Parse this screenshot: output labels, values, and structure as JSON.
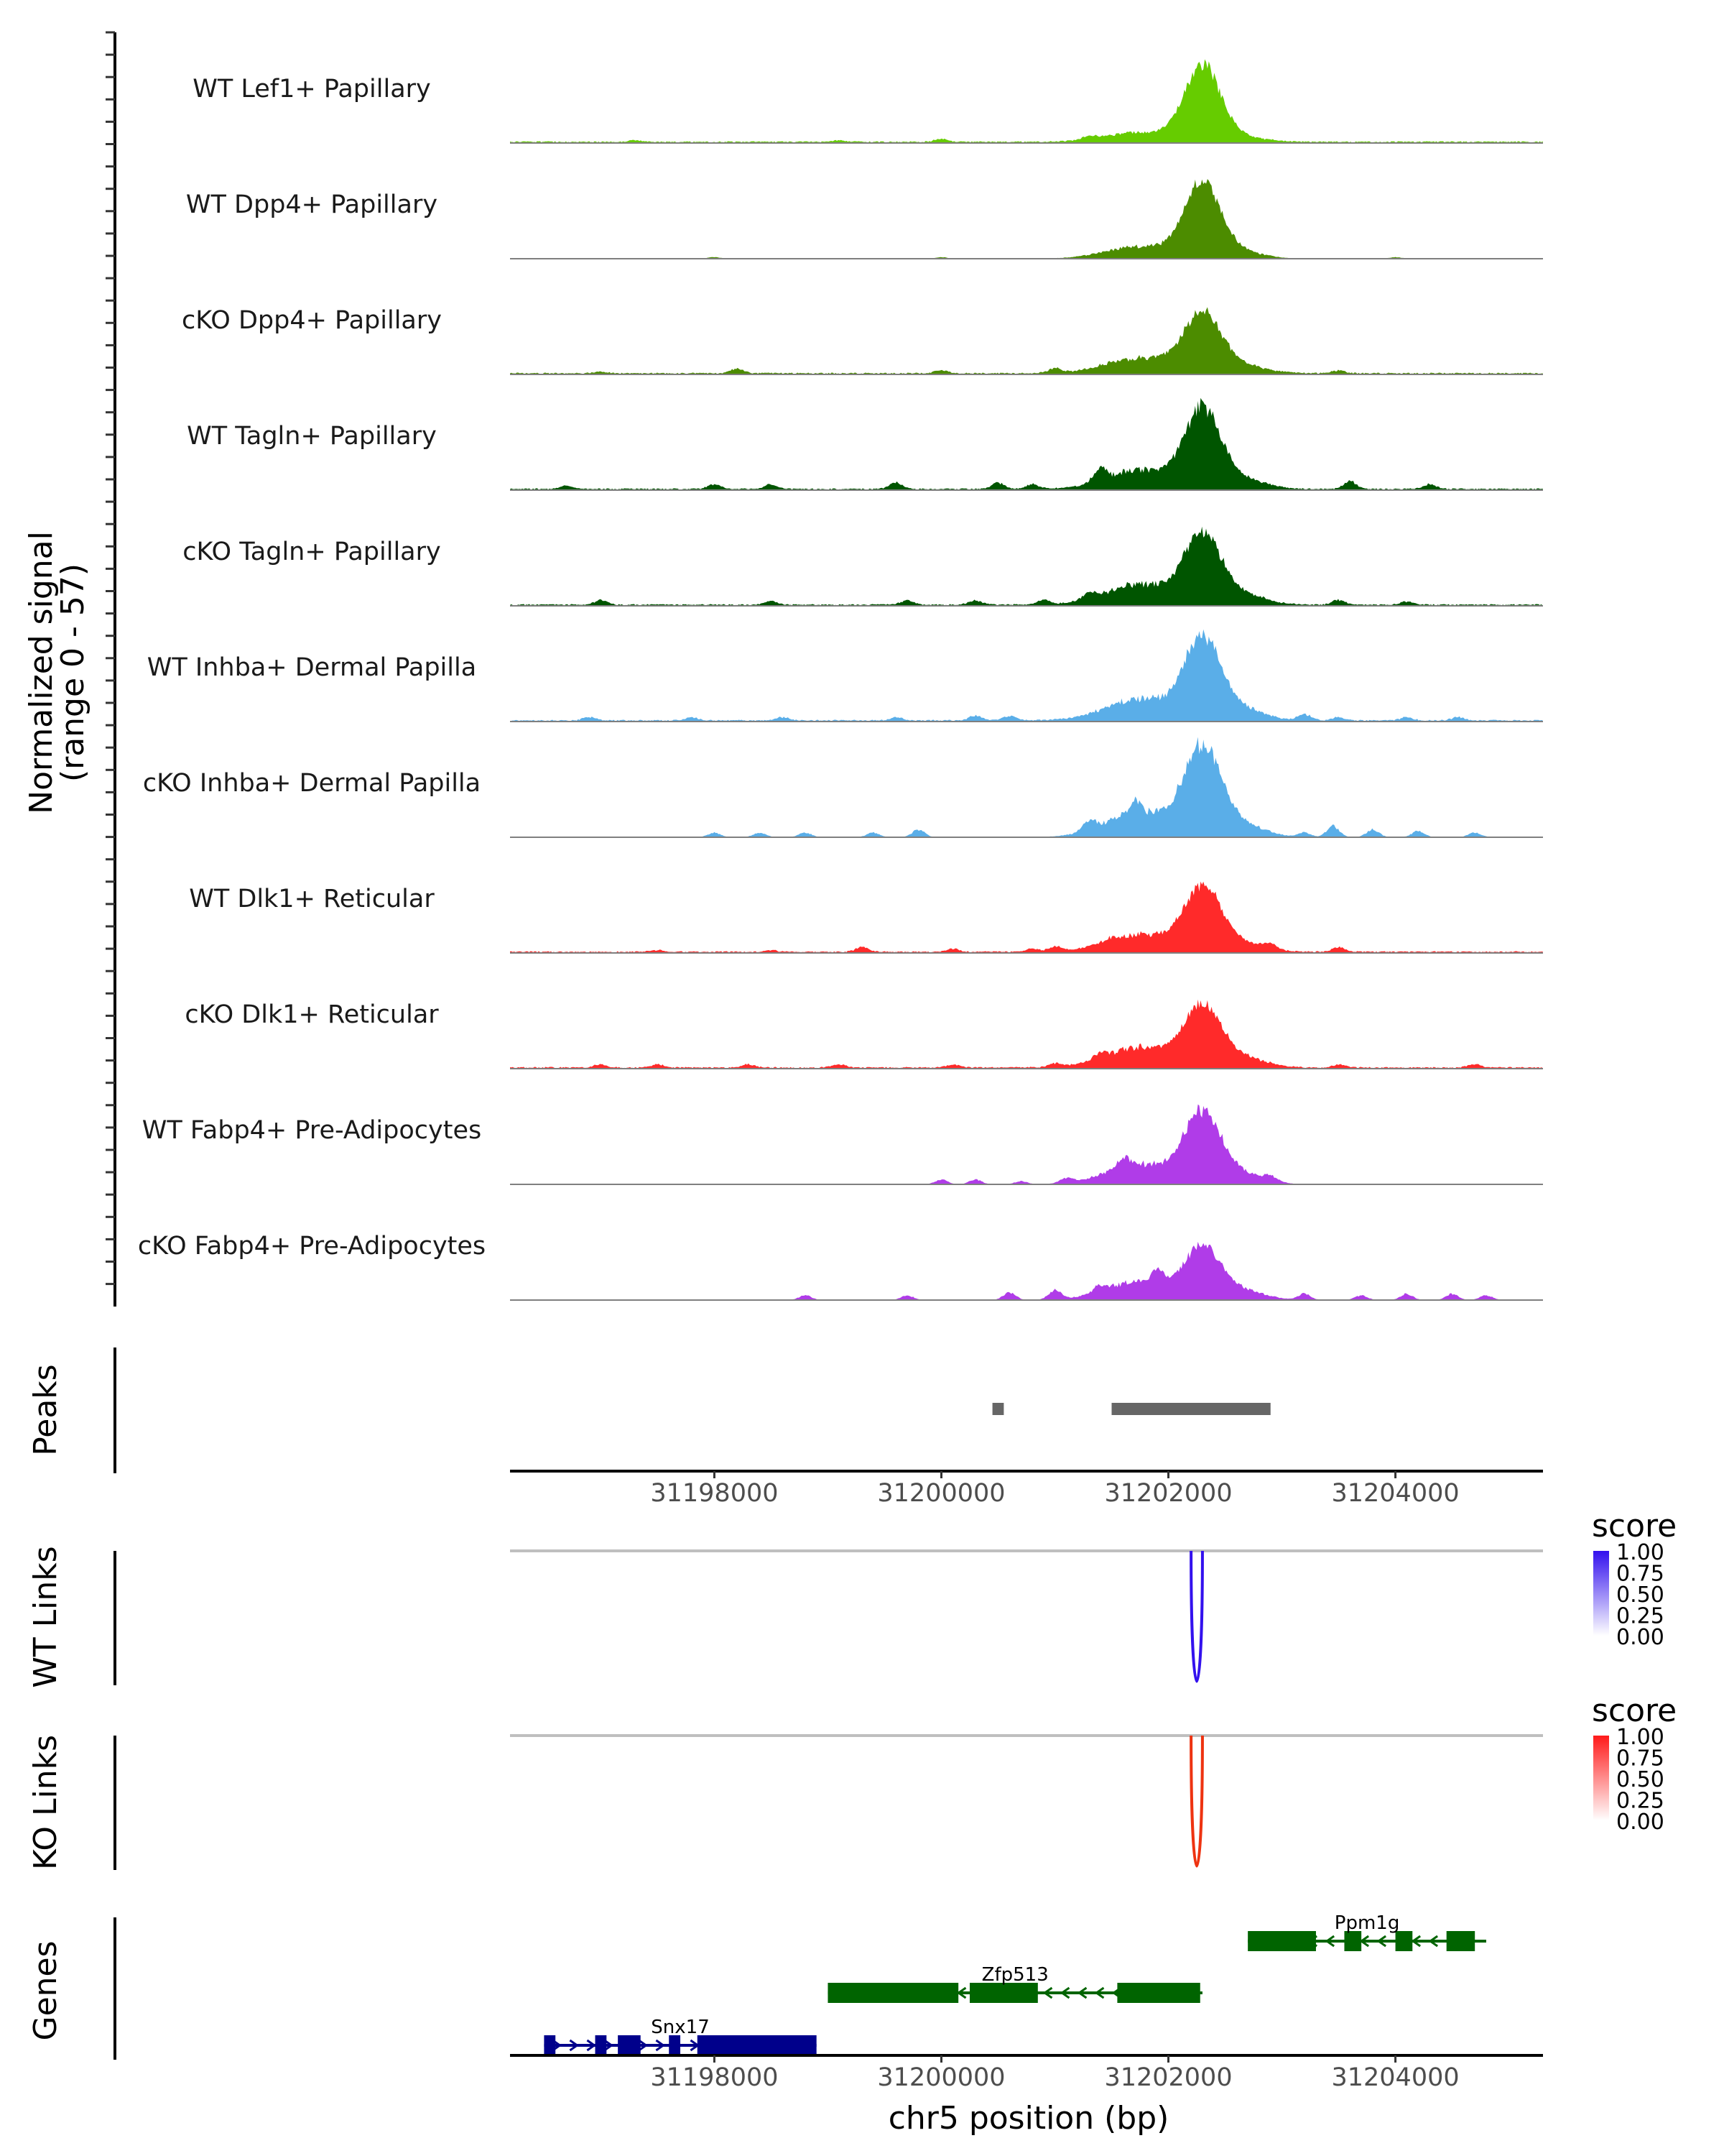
{
  "chart_data": {
    "type": "area",
    "region": {
      "chrom": "chr5",
      "start": 31196200,
      "end": 31205300
    },
    "coverage": {
      "ylabel": "Normalized signal",
      "ylabel_range": "(range 0 - 57)",
      "yrange": [
        0,
        57
      ],
      "peak_center": 31202300,
      "tracks": [
        {
          "name": "WT Lef1+ Papillary",
          "color": "#66cc00",
          "peak_height": 45,
          "baseline": 1,
          "shoulder": 6,
          "bumps": [
            [
              31197300,
              1
            ],
            [
              31199100,
              1
            ],
            [
              31200000,
              2
            ],
            [
              31201300,
              2
            ]
          ]
        },
        {
          "name": "WT Dpp4+ Papillary",
          "color": "#4c8c00",
          "peak_height": 45,
          "baseline": 0,
          "shoulder": 8,
          "bumps": [
            [
              31198000,
              1
            ],
            [
              31200000,
              1
            ],
            [
              31204000,
              1
            ]
          ]
        },
        {
          "name": "cKO Dpp4+ Papillary",
          "color": "#4c8c00",
          "peak_height": 36,
          "baseline": 1,
          "shoulder": 10,
          "bumps": [
            [
              31197000,
              1
            ],
            [
              31198200,
              3
            ],
            [
              31200000,
              2
            ],
            [
              31201000,
              3
            ],
            [
              31203500,
              2
            ]
          ]
        },
        {
          "name": "WT Tagln+ Papillary",
          "color": "#005500",
          "peak_height": 47,
          "baseline": 1,
          "shoulder": 12,
          "bumps": [
            [
              31196700,
              2
            ],
            [
              31198000,
              3
            ],
            [
              31198500,
              3
            ],
            [
              31199600,
              4
            ],
            [
              31200500,
              4
            ],
            [
              31200800,
              3
            ],
            [
              31201400,
              7
            ],
            [
              31203600,
              5
            ],
            [
              31204300,
              3
            ]
          ]
        },
        {
          "name": "cKO Tagln+ Papillary",
          "color": "#005500",
          "peak_height": 41,
          "baseline": 1,
          "shoulder": 13,
          "bumps": [
            [
              31197000,
              3
            ],
            [
              31198500,
              2
            ],
            [
              31199700,
              3
            ],
            [
              31200300,
              3
            ],
            [
              31200900,
              3
            ],
            [
              31201300,
              4
            ],
            [
              31203500,
              3
            ],
            [
              31204100,
              2
            ]
          ]
        },
        {
          "name": "WT Inhba+ Dermal Papilla",
          "color": "#5aaee8",
          "peak_height": 48,
          "baseline": 1,
          "shoulder": 14,
          "bumps": [
            [
              31196900,
              2
            ],
            [
              31197800,
              2
            ],
            [
              31198600,
              2
            ],
            [
              31199600,
              2
            ],
            [
              31200300,
              3
            ],
            [
              31200600,
              3
            ],
            [
              31203200,
              4
            ],
            [
              31203500,
              2
            ],
            [
              31204100,
              2
            ],
            [
              31204550,
              2
            ]
          ]
        },
        {
          "name": "cKO Inhba+ Dermal Papilla",
          "color": "#5aaee8",
          "peak_height": 53,
          "baseline": 0,
          "shoulder": 16,
          "bumps": [
            [
              31198000,
              3
            ],
            [
              31198400,
              3
            ],
            [
              31198800,
              3
            ],
            [
              31199400,
              3
            ],
            [
              31199800,
              5
            ],
            [
              31201300,
              6
            ],
            [
              31201700,
              7
            ],
            [
              31203200,
              3
            ],
            [
              31203450,
              7
            ],
            [
              31203800,
              5
            ],
            [
              31204200,
              4
            ],
            [
              31204700,
              3
            ]
          ]
        },
        {
          "name": "WT Dlk1+ Reticular",
          "color": "#ff2a2a",
          "peak_height": 38,
          "baseline": 1,
          "shoulder": 11,
          "bumps": [
            [
              31197500,
              1
            ],
            [
              31198500,
              1
            ],
            [
              31199300,
              3
            ],
            [
              31200100,
              2
            ],
            [
              31200800,
              2
            ],
            [
              31201000,
              3
            ],
            [
              31201500,
              2
            ],
            [
              31202900,
              3
            ],
            [
              31203500,
              3
            ]
          ]
        },
        {
          "name": "cKO Dlk1+ Reticular",
          "color": "#ff2a2a",
          "peak_height": 36,
          "baseline": 1,
          "shoulder": 13,
          "bumps": [
            [
              31197000,
              2
            ],
            [
              31197500,
              2
            ],
            [
              31198300,
              2
            ],
            [
              31199100,
              2
            ],
            [
              31200100,
              2
            ],
            [
              31201000,
              2
            ],
            [
              31201400,
              3
            ],
            [
              31203500,
              2
            ],
            [
              31204700,
              2
            ]
          ]
        },
        {
          "name": "WT Fabp4+ Pre-Adipocytes",
          "color": "#b03ce8",
          "peak_height": 42,
          "baseline": 0,
          "shoulder": 13,
          "bumps": [
            [
              31200000,
              3
            ],
            [
              31200300,
              3
            ],
            [
              31200700,
              2
            ],
            [
              31201100,
              3
            ],
            [
              31201600,
              6
            ],
            [
              31202900,
              3
            ]
          ]
        },
        {
          "name": "cKO Fabp4+ Pre-Adipocytes",
          "color": "#b03ce8",
          "peak_height": 30,
          "baseline": 0,
          "shoulder": 12,
          "bumps": [
            [
              31198800,
              3
            ],
            [
              31199700,
              3
            ],
            [
              31200600,
              5
            ],
            [
              31201000,
              6
            ],
            [
              31201400,
              4
            ],
            [
              31201900,
              8
            ],
            [
              31203200,
              4
            ],
            [
              31203700,
              3
            ],
            [
              31204100,
              4
            ],
            [
              31204500,
              4
            ],
            [
              31204800,
              3
            ]
          ]
        }
      ]
    },
    "peaks": {
      "label": "Peaks",
      "ranges": [
        [
          31200450,
          31200550
        ],
        [
          31201500,
          31202900
        ]
      ],
      "color": "#666666"
    },
    "xaxis": {
      "title": "chr5 position (bp)",
      "ticks": [
        31198000,
        31200000,
        31202000,
        31204000
      ],
      "tick_labels": [
        "31198000",
        "31200000",
        "31202000",
        "31204000"
      ]
    },
    "links": [
      {
        "label": "WT Links",
        "color": "#3311ee",
        "start": 31202200,
        "end": 31202300,
        "score": 1.0,
        "legend": {
          "title": "score",
          "labels": [
            "1.00",
            "0.75",
            "0.50",
            "0.25",
            "0.00"
          ],
          "high": "#3311ee",
          "low": "#ffffff"
        }
      },
      {
        "label": "KO Links",
        "color": "#ee3311",
        "start": 31202200,
        "end": 31202300,
        "score": 1.0,
        "legend": {
          "title": "score",
          "labels": [
            "1.00",
            "0.75",
            "0.50",
            "0.25",
            "0.00"
          ],
          "high": "#ff1a1a",
          "low": "#ffffff"
        }
      }
    ],
    "genes": {
      "label": "Genes",
      "items": [
        {
          "name": "Ppm1g",
          "strand": "-",
          "color": "#006400",
          "start": 31202700,
          "end": 31204800,
          "exons": [
            [
              31202700,
              31203300
            ],
            [
              31203550,
              31203700
            ],
            [
              31204000,
              31204150
            ],
            [
              31204450,
              31204700
            ]
          ]
        },
        {
          "name": "Zfp513",
          "strand": "-",
          "color": "#006400",
          "start": 31199000,
          "end": 31202300,
          "exons": [
            [
              31199000,
              31200150
            ],
            [
              31200250,
              31200850
            ],
            [
              31201550,
              31202280
            ]
          ]
        },
        {
          "name": "Snx17",
          "strand": "+",
          "color": "#00008b",
          "start": 31196500,
          "end": 31198900,
          "exons": [
            [
              31196500,
              31196600
            ],
            [
              31196950,
              31197050
            ],
            [
              31197150,
              31197350
            ],
            [
              31197600,
              31197700
            ],
            [
              31197850,
              31198900
            ]
          ]
        }
      ]
    }
  }
}
